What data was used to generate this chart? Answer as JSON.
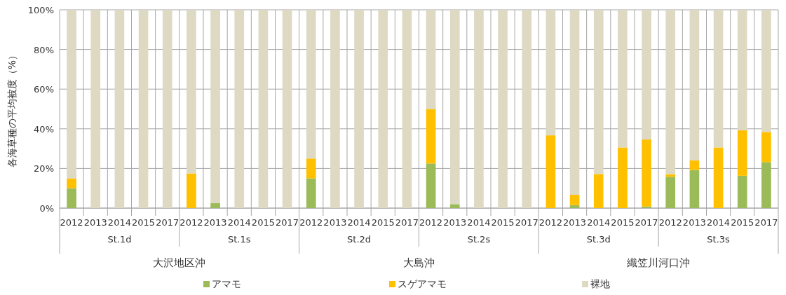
{
  "chart_data": {
    "type": "bar",
    "stacked": true,
    "ylabel": "各海草種の平均被度（%）",
    "categories": [
      "2012",
      "2013",
      "2014",
      "2015",
      "2017",
      "2012",
      "2013",
      "2014",
      "2015",
      "2017",
      "2012",
      "2013",
      "2014",
      "2015",
      "2017",
      "2012",
      "2013",
      "2014",
      "2015",
      "2017",
      "2012",
      "2013",
      "2014",
      "2015",
      "2017",
      "2012",
      "2013",
      "2014",
      "2015",
      "2017"
    ],
    "series": [
      {
        "name": "アマモ",
        "color": "#9bbb59",
        "values": [
          10,
          0,
          0,
          0,
          0,
          0,
          2.5,
          0,
          0,
          0,
          15,
          0,
          0,
          0,
          0,
          22.5,
          2,
          0,
          0,
          0,
          0,
          1.5,
          0,
          0,
          0.8,
          15.8,
          19.2,
          0,
          16.3,
          23.2
        ]
      },
      {
        "name": "スゲアマモ",
        "color": "#ffc000",
        "values": [
          5,
          0,
          0,
          0,
          0,
          17.5,
          0,
          0,
          0,
          0,
          10,
          0,
          0,
          0,
          0,
          27.5,
          0,
          0,
          0,
          0,
          36.7,
          5.2,
          17.2,
          30.6,
          33.8,
          1.3,
          4.9,
          30.6,
          22.9,
          15.2
        ]
      },
      {
        "name": "裸地",
        "color": "#ddd9c3",
        "values": [
          85,
          100,
          100,
          100,
          100,
          82.5,
          97.5,
          100,
          100,
          100,
          75,
          100,
          100,
          100,
          100,
          50,
          98,
          100,
          100,
          100,
          63.3,
          93.3,
          82.8,
          69.4,
          65.4,
          82.9,
          75.9,
          69.4,
          60.8,
          61.6
        ]
      }
    ],
    "ylim": [
      0,
      100
    ],
    "yticks": [
      {
        "value": 0,
        "label": "0%"
      },
      {
        "value": 20,
        "label": "20%"
      },
      {
        "value": 40,
        "label": "40%"
      },
      {
        "value": 60,
        "label": "60%"
      },
      {
        "value": 80,
        "label": "80%"
      },
      {
        "value": 100,
        "label": "100%"
      }
    ],
    "grid": true,
    "legend": "bottom",
    "annotations": [
      "St.1d",
      "St.1s",
      "St.2d",
      "St.2s",
      "St.3d",
      "St.3s",
      "大沢地区沖",
      "大島沖",
      "織笠川河口沖"
    ]
  }
}
